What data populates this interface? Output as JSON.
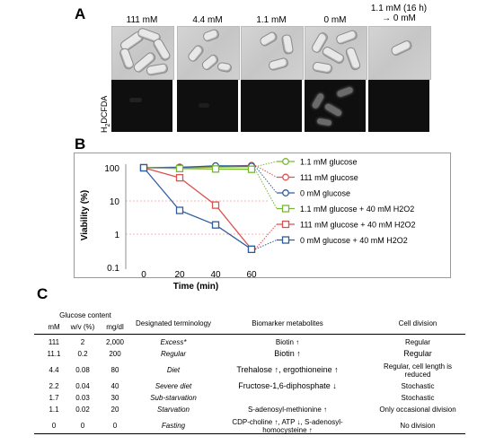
{
  "panelA": {
    "letter": "A",
    "columns": [
      {
        "label": "111 mM",
        "label2": ""
      },
      {
        "label": "4.4 mM",
        "label2": ""
      },
      {
        "label": "1.1 mM",
        "label2": ""
      },
      {
        "label": "0 mM",
        "label2": ""
      },
      {
        "label": "1.1 mM (16 h)",
        "label2": "→ 0 mM"
      }
    ],
    "row_label": "H2DCFDA"
  },
  "panelB": {
    "letter": "B",
    "chart_data": {
      "type": "line",
      "x": [
        0,
        20,
        40,
        60
      ],
      "xlabel": "Time (min)",
      "ylabel": "Viability (%)",
      "yscale": "log",
      "ylim": [
        0.1,
        100
      ],
      "yticks": [
        "100",
        "10",
        "1",
        "0.1"
      ],
      "xticks": [
        "0",
        "20",
        "40",
        "60"
      ],
      "legend_position": "right",
      "series": [
        {
          "name": "1.1 mM glucose",
          "values": [
            100,
            100,
            105,
            108
          ],
          "color": "#77b833",
          "marker": "circle"
        },
        {
          "name": "111 mM glucose",
          "values": [
            100,
            105,
            110,
            118
          ],
          "color": "#d9534f",
          "marker": "circle"
        },
        {
          "name": "0 mM glucose",
          "values": [
            100,
            102,
            115,
            112
          ],
          "color": "#2e5d9e",
          "marker": "circle"
        },
        {
          "name": "1.1 mM glucose + 40 mM H2O2",
          "values": [
            100,
            95,
            92,
            90
          ],
          "color": "#77b833",
          "marker": "square"
        },
        {
          "name": "111 mM  glucose + 40 mM H2O2",
          "values": [
            100,
            50,
            7.5,
            0.35
          ],
          "color": "#d9534f",
          "marker": "square"
        },
        {
          "name": "0 mM glucose + 40 mM H2O2",
          "values": [
            100,
            5.2,
            1.9,
            0.35
          ],
          "color": "#2e5d9e",
          "marker": "square"
        }
      ]
    }
  },
  "panelC": {
    "letter": "C",
    "header": {
      "group": "Glucose content",
      "mM": "mM",
      "wv": "w/v (%)",
      "mgdl": "mg/dl",
      "term": "Designated terminology",
      "bio": "Biomarker metabolites",
      "div": "Cell division"
    },
    "rows": [
      {
        "mM": "111",
        "wv": "2",
        "mgdl": "2,000",
        "term": "Excess*",
        "bio": "Biotin ↑",
        "div": "Regular",
        "div2": ""
      },
      {
        "mM": "11.1",
        "wv": "0.2",
        "mgdl": "200",
        "term": "Regular",
        "bio": "Biotin ↑",
        "div": "Regular",
        "div2": ""
      },
      {
        "mM": "4.4",
        "wv": "0.08",
        "mgdl": "80",
        "term": "Diet",
        "bio": "Trehalose ↑, ergothioneine ↑",
        "div": "Regular, cell length is",
        "div2": "reduced"
      },
      {
        "mM": "2.2",
        "wv": "0.04",
        "mgdl": "40",
        "term": "Severe diet",
        "bio": "Fructose-1,6-diphosphate ↓",
        "div": "Stochastic",
        "div2": ""
      },
      {
        "mM": "1.7",
        "wv": "0.03",
        "mgdl": "30",
        "term": "Sub-starvation",
        "bio": "",
        "div": "Stochastic",
        "div2": ""
      },
      {
        "mM": "1.1",
        "wv": "0.02",
        "mgdl": "20",
        "term": "Starvation",
        "bio": "S-adenosyl-methionine ↑",
        "div": "Only occasional division",
        "div2": ""
      },
      {
        "mM": "0",
        "wv": "0",
        "mgdl": "0",
        "term": "Fasting",
        "bio": "CDP-choline ↑, ATP ↓, S-adenosyl-",
        "bio2": "homocysteine ↑",
        "div": "No division",
        "div2": ""
      }
    ]
  }
}
